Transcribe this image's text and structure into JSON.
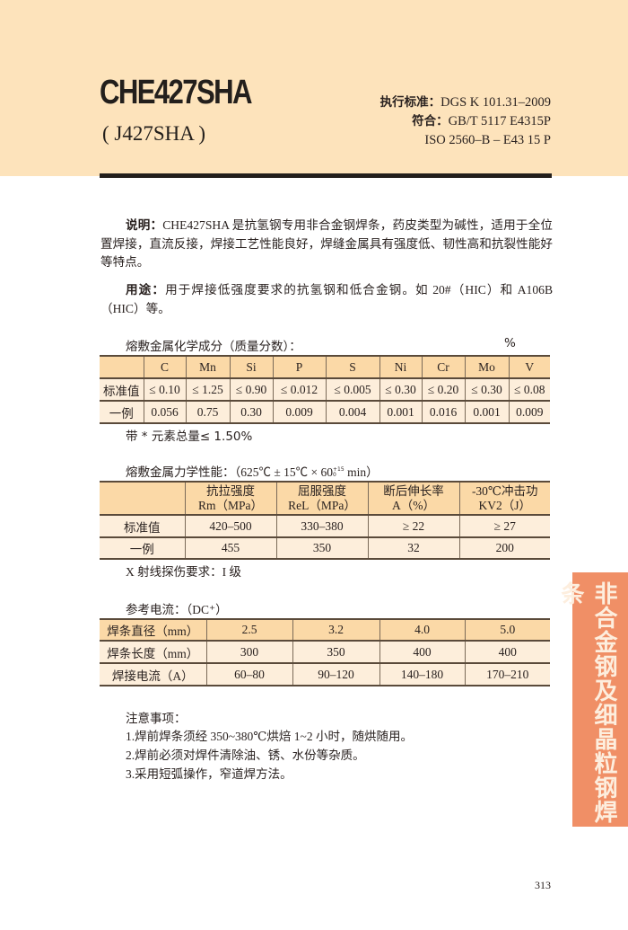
{
  "header": {
    "title": "CHE427SHA",
    "subtitle": "( J427SHA )",
    "standard_label": "执行标准：",
    "standard_value": "DGS K 101.31–2009",
    "conform_label": "符合：",
    "conform_value": "GB/T 5117 E4315P",
    "iso_value": "ISO 2560–B – E43 15 P"
  },
  "description": {
    "label": "说明：",
    "text": "CHE427SHA 是抗氢钢专用非合金钢焊条，药皮类型为碱性，适用于全位置焊接，直流反接，焊接工艺性能良好，焊缝金属具有强度低、韧性高和抗裂性能好等特点。",
    "usage_label": "用途：",
    "usage_text": "用于焊接低强度要求的抗氢钢和低合金钢。如 20#（HIC）和 A106B（HIC）等。"
  },
  "chemistry": {
    "title": "熔敷金属化学成分（质量分数）：",
    "unit": "%",
    "headers": [
      "",
      "C",
      "Mn",
      "Si",
      "P",
      "S",
      "Ni",
      "Cr",
      "Mo",
      "V"
    ],
    "rows": [
      [
        "标准值",
        "≤ 0.10",
        "≤ 1.25",
        "≤ 0.90",
        "≤ 0.012",
        "≤ 0.005",
        "≤ 0.30",
        "≤ 0.20",
        "≤ 0.30",
        "≤ 0.08"
      ],
      [
        "一例",
        "0.056",
        "0.75",
        "0.30",
        "0.009",
        "0.004",
        "0.001",
        "0.016",
        "0.001",
        "0.009"
      ]
    ],
    "footnote": "带 * 元素总量≤ 1.50%"
  },
  "mechanical": {
    "title": "熔敷金属力学性能：",
    "condition": "（625℃ ± 15℃ × 60",
    "condition_sup": "+15",
    "condition_sub": "0",
    "condition_end": " min）",
    "headers": [
      {
        "line1": "",
        "line2": ""
      },
      {
        "line1": "抗拉强度",
        "line2": "Rm（MPa）"
      },
      {
        "line1": "屈服强度",
        "line2": "ReL（MPa）"
      },
      {
        "line1": "断后伸长率",
        "line2": "A（%）"
      },
      {
        "line1": "-30℃冲击功",
        "line2": "KV2（J）"
      }
    ],
    "rows": [
      [
        "标准值",
        "420–500",
        "330–380",
        "≥ 22",
        "≥ 27"
      ],
      [
        "一例",
        "455",
        "350",
        "32",
        "200"
      ]
    ],
    "xray": "X 射线探伤要求：I 级"
  },
  "current": {
    "title": "参考电流：",
    "polarity": "（DC⁺）",
    "rows": [
      [
        "焊条直径（mm）",
        "2.5",
        "3.2",
        "4.0",
        "5.0"
      ],
      [
        "焊条长度（mm）",
        "300",
        "350",
        "400",
        "400"
      ],
      [
        "焊接电流（A）",
        "60–80",
        "90–120",
        "140–180",
        "170–210"
      ]
    ]
  },
  "notes": {
    "title": "注意事项：",
    "items": [
      "1.焊前焊条须经 350~380℃烘焙 1~2 小时，随烘随用。",
      "2.焊前必须对焊件清除油、锈、水份等杂质。",
      "3.采用短弧操作，窄道焊方法。"
    ]
  },
  "side_tab": "非合金钢及细晶粒钢焊条",
  "page_number": "313",
  "colors": {
    "header_band": "#fde3bb",
    "table_header": "#fbd9a7",
    "table_body": "#fdeedb",
    "side_tab": "#f08f66"
  }
}
